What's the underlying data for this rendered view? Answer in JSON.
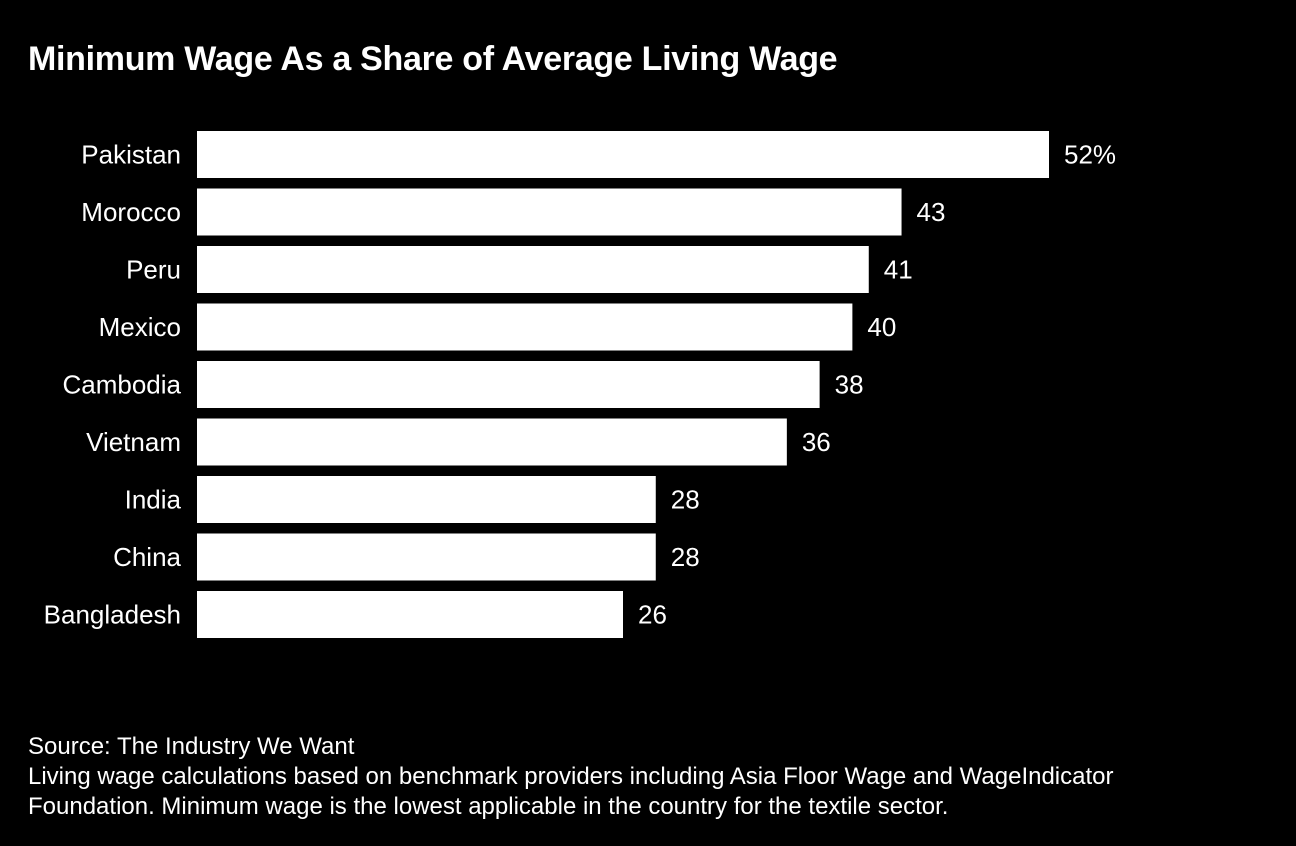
{
  "chart_data": {
    "type": "bar",
    "orientation": "horizontal",
    "title": "Minimum Wage As a Share of Average Living Wage",
    "categories": [
      "Pakistan",
      "Morocco",
      "Peru",
      "Mexico",
      "Cambodia",
      "Vietnam",
      "India",
      "China",
      "Bangladesh"
    ],
    "values": [
      52,
      43,
      41,
      40,
      38,
      36,
      28,
      28,
      26
    ],
    "value_labels": [
      "52%",
      "43",
      "41",
      "40",
      "38",
      "36",
      "28",
      "28",
      "26"
    ],
    "unit": "%",
    "xlim": [
      0,
      52
    ],
    "grid": false,
    "bar_color": "#ffffff",
    "background_color": "#000000",
    "text_color": "#ffffff"
  },
  "footer": {
    "source": "Source: The Industry We Want",
    "note_line1": "Living wage calculations based on benchmark providers including Asia Floor Wage and WageIndicator",
    "note_line2": "Foundation. Minimum wage is the lowest applicable in the country for the textile sector."
  }
}
